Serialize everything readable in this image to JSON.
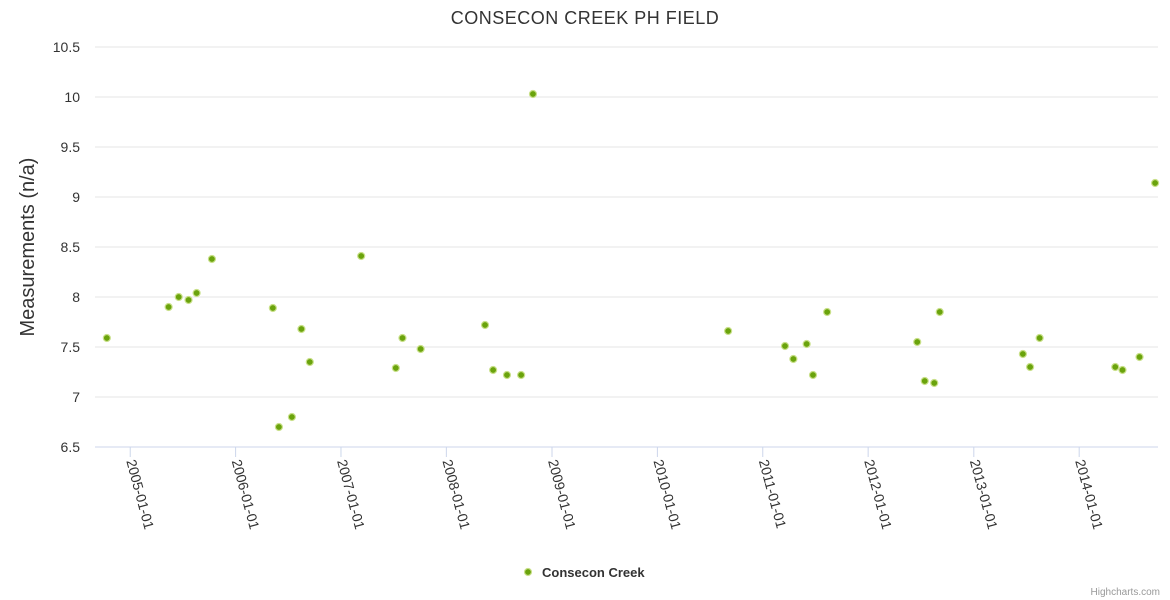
{
  "chart_data": {
    "type": "scatter",
    "title": "CONSECON CREEK PH FIELD",
    "xlabel": "",
    "ylabel": "Measurements (n/a)",
    "ylim": [
      6.5,
      10.5
    ],
    "yticks": [
      "6.5",
      "7",
      "7.5",
      "8",
      "8.5",
      "9",
      "9.5",
      "10",
      "10.5"
    ],
    "xlim": [
      "2004-09-01",
      "2014-10-01"
    ],
    "xticks": [
      "2005-01-01",
      "2006-01-01",
      "2007-01-01",
      "2008-01-01",
      "2009-01-01",
      "2010-01-01",
      "2011-01-01",
      "2012-01-01",
      "2013-01-01",
      "2014-01-01"
    ],
    "legend": "bottom-center",
    "credits": "Highcharts.com",
    "series": [
      {
        "name": "Consecon Creek",
        "color": "#6aa30c",
        "points": [
          [
            "2004-10-12",
            7.59
          ],
          [
            "2005-05-14",
            7.9
          ],
          [
            "2005-06-18",
            8.0
          ],
          [
            "2005-07-22",
            7.97
          ],
          [
            "2005-08-19",
            8.04
          ],
          [
            "2005-10-11",
            8.38
          ],
          [
            "2006-05-10",
            7.89
          ],
          [
            "2006-05-31",
            6.7
          ],
          [
            "2006-07-15",
            6.8
          ],
          [
            "2006-08-17",
            7.68
          ],
          [
            "2006-09-15",
            7.35
          ],
          [
            "2007-03-12",
            8.41
          ],
          [
            "2007-07-10",
            7.29
          ],
          [
            "2007-08-02",
            7.59
          ],
          [
            "2007-10-04",
            7.48
          ],
          [
            "2008-05-14",
            7.72
          ],
          [
            "2008-06-11",
            7.27
          ],
          [
            "2008-07-29",
            7.22
          ],
          [
            "2008-09-16",
            7.22
          ],
          [
            "2008-10-27",
            10.03
          ],
          [
            "2010-09-03",
            7.66
          ],
          [
            "2011-03-19",
            7.51
          ],
          [
            "2011-04-17",
            7.38
          ],
          [
            "2011-06-02",
            7.53
          ],
          [
            "2011-06-24",
            7.22
          ],
          [
            "2011-08-12",
            7.85
          ],
          [
            "2012-06-19",
            7.55
          ],
          [
            "2012-07-15",
            7.16
          ],
          [
            "2012-08-17",
            7.14
          ],
          [
            "2012-09-05",
            7.85
          ],
          [
            "2013-06-20",
            7.43
          ],
          [
            "2013-07-15",
            7.3
          ],
          [
            "2013-08-17",
            7.59
          ],
          [
            "2014-05-06",
            7.3
          ],
          [
            "2014-05-31",
            7.27
          ],
          [
            "2014-07-29",
            7.4
          ],
          [
            "2014-09-21",
            9.14
          ]
        ]
      }
    ]
  }
}
